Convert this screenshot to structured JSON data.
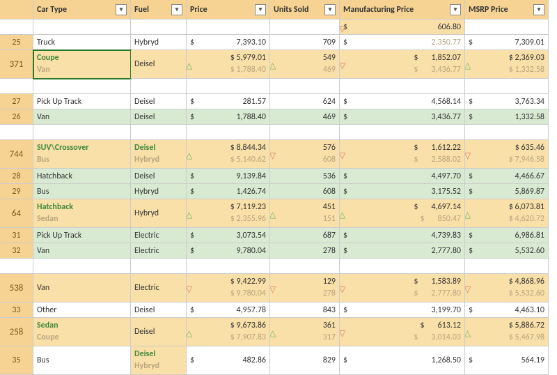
{
  "headers": [
    "Car Type",
    "Fuel",
    "Price",
    "Units Sold",
    "Manufacturing Price",
    "MSRP Price"
  ],
  "rows": [
    {
      "id": "",
      "blank": true,
      "mfg_top": "606.80",
      "bg": "",
      "double_mfg": true
    },
    {
      "id": "25",
      "ct": "Truck",
      "fuel": "Hybryd",
      "price": "7,393.10",
      "units": "709",
      "mfg": "2,350.77",
      "mfg_dim": true,
      "msrp": "7,309.01",
      "bg": ""
    },
    {
      "id": "371",
      "double": true,
      "ct_top": "Coupe",
      "ct_bot": "Van",
      "ct_g": true,
      "ct_r": true,
      "fuel": "Deisel",
      "p_top": "5,979.01",
      "p_bot": "1,788.40",
      "p_dir": "up",
      "u_top": "549",
      "u_bot": "469",
      "u_dir": "up",
      "m_top": "1,852.07",
      "m_bot": "3,436.77",
      "m_dir": "dn",
      "r_top": "2,369.03",
      "r_bot": "1,332.58",
      "r_dir": "up",
      "bg": "bg-ora",
      "outline": true
    },
    {
      "id": "",
      "blank": true,
      "bg": ""
    },
    {
      "id": "27",
      "ct": "Pick Up Track",
      "fuel": "Deisel",
      "price": "281.57",
      "units": "624",
      "mfg": "4,568.14",
      "msrp": "3,763.34",
      "bg": ""
    },
    {
      "id": "26",
      "ct": "Van",
      "fuel": "Deisel",
      "price": "1,788.40",
      "units": "469",
      "mfg": "3,436.77",
      "msrp": "1,332.58",
      "bg": "bg-grn"
    },
    {
      "id": "",
      "blank": true,
      "bg": ""
    },
    {
      "id": "744",
      "double": true,
      "ct_top": "SUV\\Crossover",
      "ct_bot": "Bus",
      "ct_g": true,
      "ct_r": true,
      "fuel_top": "Deisel",
      "fuel_bot": "Hybryd",
      "fuel_g": true,
      "fuel_r": true,
      "p_top": "8,844.34",
      "p_bot": "5,140.62",
      "p_dir": "up",
      "u_top": "576",
      "u_bot": "608",
      "u_dir": "dn",
      "m_top": "1,612.22",
      "m_bot": "2,588.02",
      "m_dir": "dn",
      "r_top": "635.46",
      "r_bot": "7,946.58",
      "r_dir": "dn",
      "bg": "bg-ora"
    },
    {
      "id": "28",
      "ct": "Hatchback",
      "fuel": "Deisel",
      "price": "9,139.84",
      "units": "536",
      "mfg": "4,497.70",
      "msrp": "4,466.67",
      "bg": "bg-grn"
    },
    {
      "id": "29",
      "ct": "Bus",
      "fuel": "Hybryd",
      "price": "1,426.74",
      "units": "608",
      "mfg": "3,175.52",
      "msrp": "5,869.87",
      "bg": "bg-grn"
    },
    {
      "id": "64",
      "double": true,
      "ct_top": "Hatchback",
      "ct_bot": "Sedan",
      "ct_g": true,
      "ct_r": true,
      "fuel": "Hybryd",
      "p_top": "7,119.23",
      "p_bot": "2,355.96",
      "p_dir": "up",
      "u_top": "451",
      "u_bot": "151",
      "u_dir": "up",
      "m_top": "4,697.14",
      "m_bot": "850.47",
      "m_dir": "up",
      "r_top": "6,073.81",
      "r_bot": "4,620.72",
      "r_dir": "up",
      "bg": "bg-ora"
    },
    {
      "id": "31",
      "ct": "Pick Up Track",
      "fuel": "Electric",
      "price": "3,073.54",
      "units": "687",
      "mfg": "4,739.83",
      "msrp": "6,986.81",
      "bg": "bg-grn"
    },
    {
      "id": "32",
      "ct": "Van",
      "fuel": "Electric",
      "price": "9,780.04",
      "units": "278",
      "mfg": "2,777.80",
      "msrp": "5,532.60",
      "bg": "bg-grn"
    },
    {
      "id": "",
      "blank": true,
      "bg": ""
    },
    {
      "id": "538",
      "double": true,
      "ct": "Van",
      "fuel": "Electric",
      "p_top": "9,422.99",
      "p_bot": "9,780.04",
      "p_dir": "dn",
      "u_top": "129",
      "u_bot": "278",
      "u_dir": "dn",
      "m_top": "1,583.89",
      "m_bot": "2,777.80",
      "m_dir": "dn",
      "r_top": "4,868.96",
      "r_bot": "5,532.60",
      "r_dir": "dn",
      "bg": "bg-ora"
    },
    {
      "id": "33",
      "ct": "Other",
      "fuel": "Deisel",
      "price": "4,957.78",
      "units": "843",
      "mfg": "3,199.70",
      "msrp": "4,463.10",
      "bg": ""
    },
    {
      "id": "258",
      "double": true,
      "ct_top": "Sedan",
      "ct_bot": "Coupe",
      "ct_g": true,
      "ct_r": true,
      "fuel": "Deisel",
      "p_top": "9,673.86",
      "p_bot": "7,907.83",
      "p_dir": "up",
      "u_top": "361",
      "u_bot": "317",
      "u_dir": "up",
      "m_top": "613.12",
      "m_bot": "3,014.03",
      "m_dir": "dn",
      "r_top": "5,886.72",
      "r_bot": "5,467.98",
      "r_dir": "up",
      "bg": "bg-ora"
    },
    {
      "id": "35",
      "ct": "Bus",
      "fuel_top": "Deisel",
      "fuel_bot": "Hybryd",
      "fuel_g": true,
      "fuel_r": true,
      "price": "482.86",
      "units": "829",
      "mfg": "1,268.50",
      "msrp": "564.19",
      "bg": "",
      "fuel_bg": "bg-ora"
    }
  ]
}
